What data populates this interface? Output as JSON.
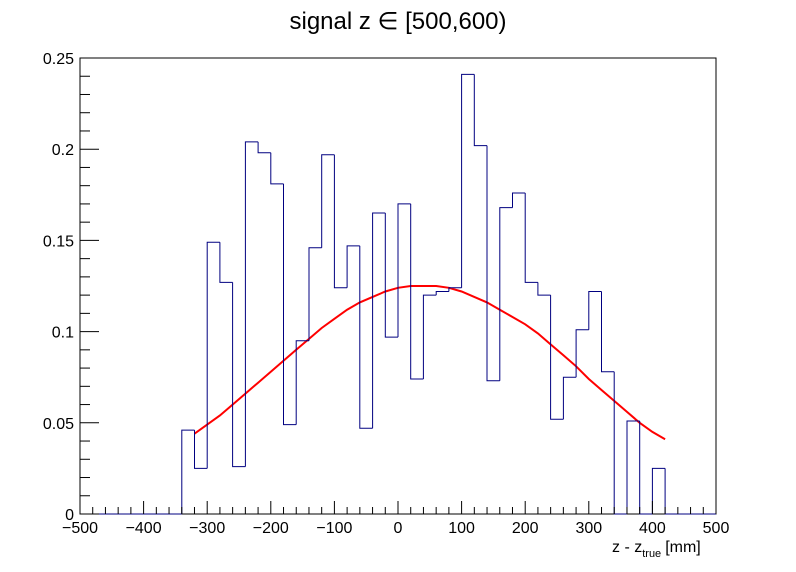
{
  "chart_data": {
    "type": "histogram",
    "title": "signal z ∈ [500,600)",
    "xlabel": "z - z",
    "xlabel_subscript": "true",
    "xlabel_unit": "[mm]",
    "xlim": [
      -500,
      500
    ],
    "ylim": [
      0,
      0.25
    ],
    "x_ticks": [
      -500,
      -400,
      -300,
      -200,
      -100,
      0,
      100,
      200,
      300,
      400,
      500
    ],
    "x_tick_labels": [
      "−500",
      "−400",
      "−300",
      "−200",
      "−100",
      "0",
      "100",
      "200",
      "300",
      "400",
      "500"
    ],
    "y_ticks": [
      0,
      0.05,
      0.1,
      0.15,
      0.2,
      0.25
    ],
    "y_tick_labels": [
      "0",
      "0.05",
      "0.1",
      "0.15",
      "0.2",
      "0.25"
    ],
    "grid": false,
    "histogram": {
      "color": "#000080",
      "bin_width": 20,
      "bins": [
        {
          "x0": -500,
          "x1": -340,
          "y": 0
        },
        {
          "x0": -340,
          "x1": -320,
          "y": 0.046
        },
        {
          "x0": -320,
          "x1": -300,
          "y": 0.025
        },
        {
          "x0": -300,
          "x1": -280,
          "y": 0.149
        },
        {
          "x0": -280,
          "x1": -260,
          "y": 0.127
        },
        {
          "x0": -260,
          "x1": -240,
          "y": 0.026
        },
        {
          "x0": -240,
          "x1": -220,
          "y": 0.204
        },
        {
          "x0": -220,
          "x1": -200,
          "y": 0.198
        },
        {
          "x0": -200,
          "x1": -180,
          "y": 0.181
        },
        {
          "x0": -180,
          "x1": -160,
          "y": 0.049
        },
        {
          "x0": -160,
          "x1": -140,
          "y": 0.095
        },
        {
          "x0": -140,
          "x1": -120,
          "y": 0.146
        },
        {
          "x0": -120,
          "x1": -100,
          "y": 0.197
        },
        {
          "x0": -100,
          "x1": -80,
          "y": 0.124
        },
        {
          "x0": -80,
          "x1": -60,
          "y": 0.147
        },
        {
          "x0": -60,
          "x1": -40,
          "y": 0.047
        },
        {
          "x0": -40,
          "x1": -20,
          "y": 0.165
        },
        {
          "x0": -20,
          "x1": 0,
          "y": 0.097
        },
        {
          "x0": 0,
          "x1": 20,
          "y": 0.17
        },
        {
          "x0": 20,
          "x1": 40,
          "y": 0.074
        },
        {
          "x0": 40,
          "x1": 60,
          "y": 0.12
        },
        {
          "x0": 60,
          "x1": 80,
          "y": 0.122
        },
        {
          "x0": 80,
          "x1": 100,
          "y": 0.124
        },
        {
          "x0": 100,
          "x1": 120,
          "y": 0.241
        },
        {
          "x0": 120,
          "x1": 140,
          "y": 0.202
        },
        {
          "x0": 140,
          "x1": 160,
          "y": 0.073
        },
        {
          "x0": 160,
          "x1": 180,
          "y": 0.168
        },
        {
          "x0": 180,
          "x1": 200,
          "y": 0.176
        },
        {
          "x0": 200,
          "x1": 220,
          "y": 0.127
        },
        {
          "x0": 220,
          "x1": 240,
          "y": 0.12
        },
        {
          "x0": 240,
          "x1": 260,
          "y": 0.052
        },
        {
          "x0": 260,
          "x1": 280,
          "y": 0.075
        },
        {
          "x0": 280,
          "x1": 300,
          "y": 0.101
        },
        {
          "x0": 300,
          "x1": 320,
          "y": 0.122
        },
        {
          "x0": 320,
          "x1": 340,
          "y": 0.078
        },
        {
          "x0": 340,
          "x1": 360,
          "y": 0
        },
        {
          "x0": 360,
          "x1": 380,
          "y": 0.051
        },
        {
          "x0": 380,
          "x1": 400,
          "y": 0
        },
        {
          "x0": 400,
          "x1": 420,
          "y": 0.025
        },
        {
          "x0": 420,
          "x1": 500,
          "y": 0
        }
      ]
    },
    "fit": {
      "type": "line",
      "color": "#ff0000",
      "x": [
        -320,
        -300,
        -280,
        -260,
        -240,
        -220,
        -200,
        -180,
        -160,
        -140,
        -120,
        -100,
        -80,
        -60,
        -40,
        -20,
        0,
        20,
        40,
        60,
        80,
        100,
        120,
        140,
        160,
        180,
        200,
        220,
        240,
        260,
        280,
        300,
        320,
        340,
        360,
        380,
        400,
        420
      ],
      "y": [
        0.044,
        0.049,
        0.054,
        0.06,
        0.066,
        0.072,
        0.078,
        0.084,
        0.09,
        0.096,
        0.102,
        0.107,
        0.112,
        0.116,
        0.119,
        0.122,
        0.124,
        0.125,
        0.125,
        0.125,
        0.124,
        0.122,
        0.119,
        0.116,
        0.112,
        0.108,
        0.104,
        0.099,
        0.093,
        0.087,
        0.081,
        0.074,
        0.068,
        0.062,
        0.056,
        0.05,
        0.045,
        0.041
      ]
    }
  }
}
